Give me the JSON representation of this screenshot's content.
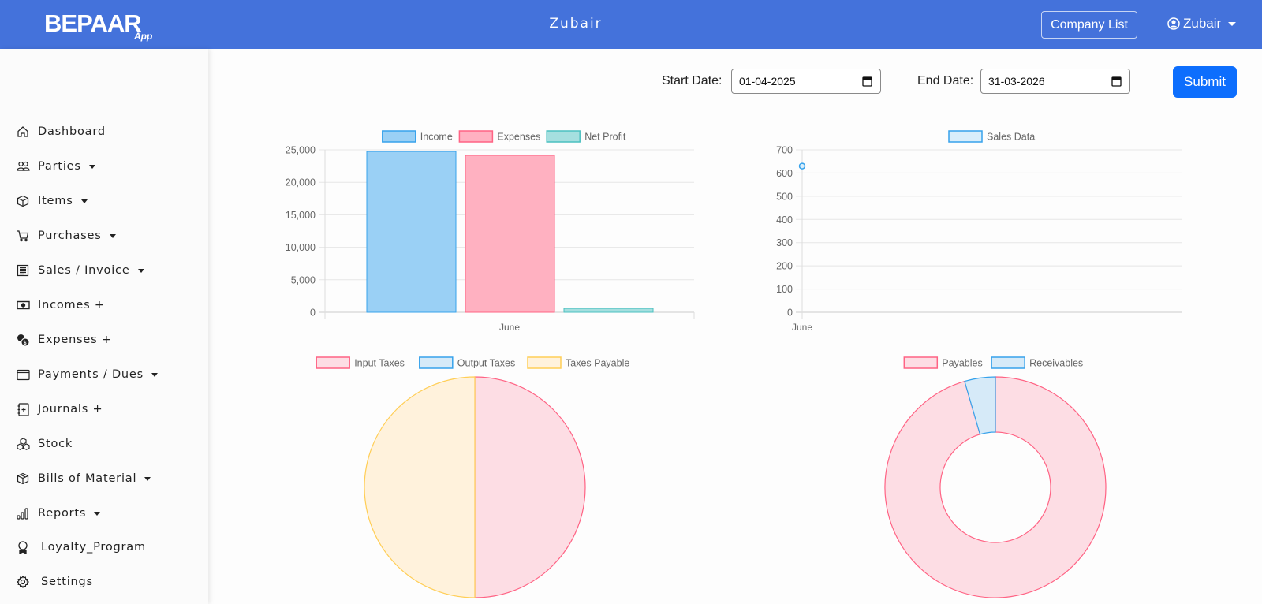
{
  "header": {
    "logo_text": "BEPAAR App",
    "title": "Zubair",
    "company_list_label": "Company List",
    "user_label": "Zubair",
    "brand_color": "#4472db"
  },
  "sidebar": {
    "items": [
      {
        "label": "Dashboard",
        "icon": "house-icon",
        "dropdown": false
      },
      {
        "label": "Parties",
        "icon": "people-icon",
        "dropdown": true
      },
      {
        "label": "Items",
        "icon": "box-icon",
        "dropdown": true
      },
      {
        "label": "Purchases",
        "icon": "cart-icon",
        "dropdown": true
      },
      {
        "label": "Sales / Invoice",
        "icon": "invoice-icon",
        "dropdown": true
      },
      {
        "label": "Incomes +",
        "icon": "cash-icon",
        "dropdown": false
      },
      {
        "label": "Expenses +",
        "icon": "coins-icon",
        "dropdown": false
      },
      {
        "label": "Payments / Dues",
        "icon": "wallet-icon",
        "dropdown": true
      },
      {
        "label": "Journals +",
        "icon": "journal-plus-icon",
        "dropdown": false
      },
      {
        "label": "Stock",
        "icon": "boxes-icon",
        "dropdown": false
      },
      {
        "label": "Bills of Material",
        "icon": "box-seam-icon",
        "dropdown": true
      },
      {
        "label": "Reports",
        "icon": "bar-chart-icon",
        "dropdown": true
      },
      {
        "label": "Loyalty_Program",
        "icon": "award-icon",
        "dropdown": false
      },
      {
        "label": "Settings",
        "icon": "gear-icon",
        "dropdown": false
      }
    ]
  },
  "filters": {
    "start_label": "Start Date:",
    "start_value": "01-04-2025",
    "end_label": "End Date:",
    "end_value": "31-03-2026",
    "submit_label": "Submit",
    "submit_color": "#0d6efd"
  },
  "chart_data": [
    {
      "type": "bar",
      "title": "",
      "categories": [
        "June"
      ],
      "series": [
        {
          "name": "Income",
          "values": [
            24750
          ],
          "fill": "#9ad0f5",
          "stroke": "#36a2eb"
        },
        {
          "name": "Expenses",
          "values": [
            24150
          ],
          "fill": "#ffb1c1",
          "stroke": "#ff6384"
        },
        {
          "name": "Net Profit",
          "values": [
            600
          ],
          "fill": "#a5dfdf",
          "stroke": "#4bc0c0"
        }
      ],
      "ylim": [
        0,
        25000
      ],
      "yticks": [
        "0",
        "5,000",
        "10,000",
        "15,000",
        "20,000",
        "25,000"
      ],
      "ytick_values": [
        0,
        5000,
        10000,
        15000,
        20000,
        25000
      ],
      "grid": true,
      "legend": "top"
    },
    {
      "type": "line",
      "title": "",
      "x": [
        "June"
      ],
      "series": [
        {
          "name": "Sales Data",
          "values": [
            630
          ],
          "fill": "#d9eefb",
          "stroke": "#36a2eb"
        }
      ],
      "ylim": [
        0,
        700
      ],
      "yticks": [
        "0",
        "100",
        "200",
        "300",
        "400",
        "500",
        "600",
        "700"
      ],
      "ytick_values": [
        0,
        100,
        200,
        300,
        400,
        500,
        600,
        700
      ],
      "grid": true,
      "legend": "top"
    },
    {
      "type": "pie",
      "title": "",
      "labels": [
        "Input Taxes",
        "Output Taxes",
        "Taxes Payable"
      ],
      "values": [
        50,
        0,
        50
      ],
      "fills": [
        "#fddde4",
        "#d6eaf8",
        "#fff2dc"
      ],
      "strokes": [
        "#ff6384",
        "#36a2eb",
        "#ffce56"
      ],
      "legend": "top"
    },
    {
      "type": "doughnut",
      "title": "",
      "labels": [
        "Payables",
        "Receivables"
      ],
      "values": [
        95.5,
        4.5
      ],
      "fills": [
        "#fddde4",
        "#d6eaf8"
      ],
      "strokes": [
        "#ff6384",
        "#36a2eb"
      ],
      "legend": "top"
    }
  ]
}
